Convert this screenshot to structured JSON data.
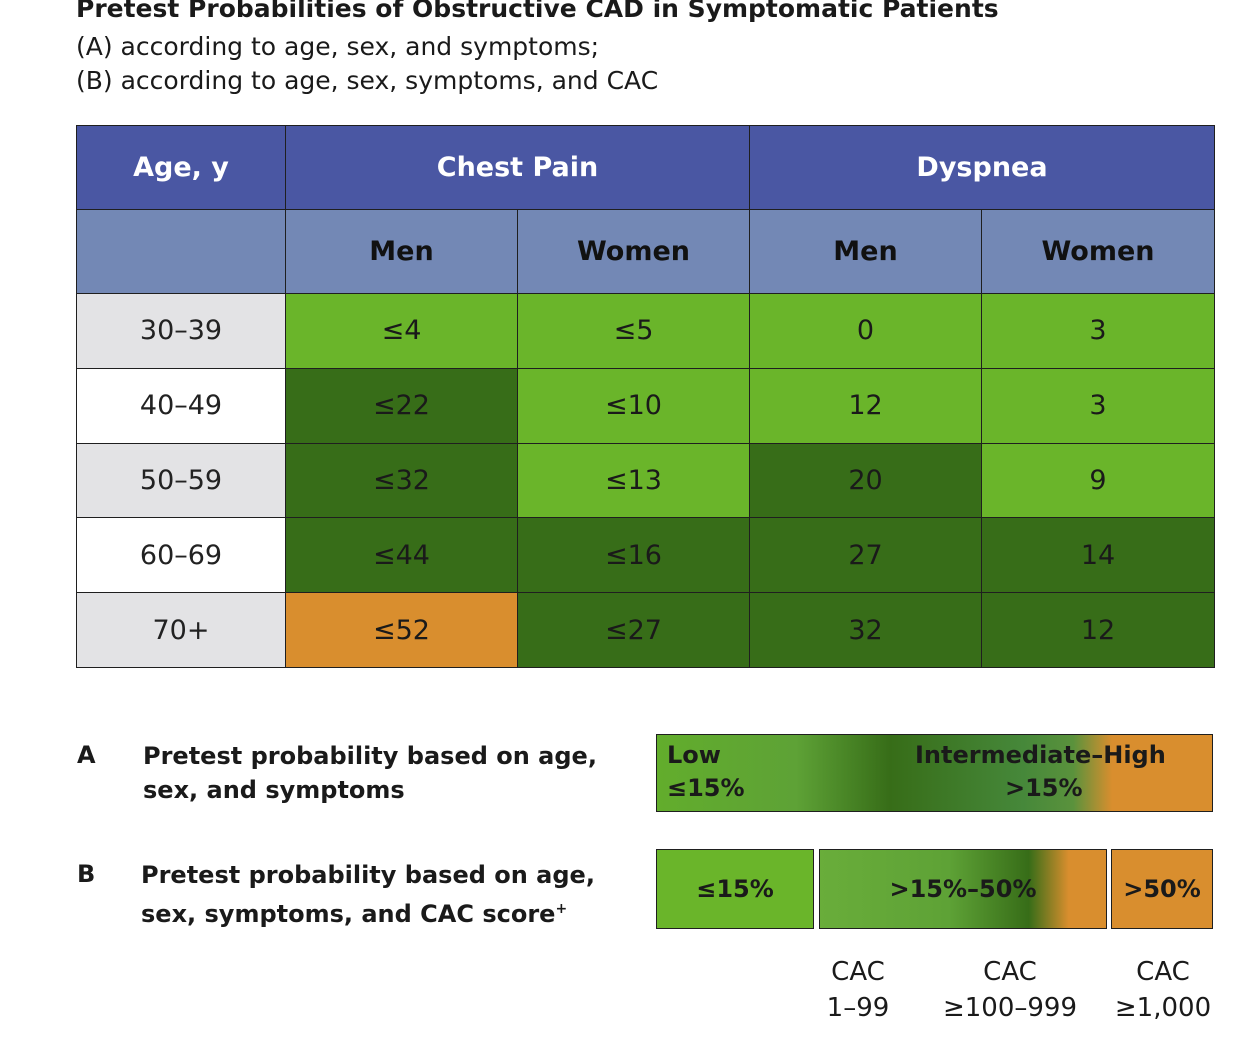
{
  "title": "Pretest Probabilities of Obstructive CAD in Symptomatic Patients",
  "subtitle_lines": [
    "(A) according to age, sex, and symptoms;",
    "(B) according to age, sex, symptoms, and CAC"
  ],
  "chart_data": {
    "type": "table",
    "header_row1": [
      "Age, y",
      "Chest Pain",
      "Dyspnea"
    ],
    "header_row2": [
      "Men",
      "Women",
      "Men",
      "Women"
    ],
    "rows": [
      {
        "age": "30–39",
        "values": [
          "≤4",
          "≤5",
          "0",
          "3"
        ],
        "colors": [
          "light-green",
          "light-green",
          "light-green",
          "light-green"
        ]
      },
      {
        "age": "40–49",
        "values": [
          "≤22",
          "≤10",
          "12",
          "3"
        ],
        "colors": [
          "dark-green",
          "light-green",
          "light-green",
          "light-green"
        ]
      },
      {
        "age": "50–59",
        "values": [
          "≤32",
          "≤13",
          "20",
          "9"
        ],
        "colors": [
          "dark-green",
          "light-green",
          "dark-green",
          "light-green"
        ]
      },
      {
        "age": "60–69",
        "values": [
          "≤44",
          "≤16",
          "27",
          "14"
        ],
        "colors": [
          "dark-green",
          "dark-green",
          "dark-green",
          "dark-green"
        ]
      },
      {
        "age": "70+",
        "values": [
          "≤52",
          "≤27",
          "32",
          "12"
        ],
        "colors": [
          "orange",
          "dark-green",
          "dark-green",
          "dark-green"
        ]
      }
    ]
  },
  "colors": {
    "header_dark": "#4a57a3",
    "header_light": "#7388b5",
    "light_green": "#6ab52a",
    "dark_green": "#376d18",
    "orange": "#d98e2e"
  },
  "legend": {
    "a": {
      "letter": "A",
      "label_lines": [
        "Pretest probability based on age,",
        "sex, and symptoms"
      ],
      "low_label": "Low",
      "low_value": "≤15%",
      "high_label": "Intermediate–High",
      "high_value": ">15%"
    },
    "b": {
      "letter": "B",
      "label_line1": "Pretest probability based on age,",
      "label_line2": "sex, symptoms, and CAC score",
      "label_sup": "+",
      "segments": [
        "≤15%",
        ">15%–50%",
        ">50%"
      ],
      "cac_labels": [
        {
          "line1": "CAC",
          "line2": "1–99"
        },
        {
          "line1": "CAC",
          "line2": "≥100–999"
        },
        {
          "line1": "CAC",
          "line2": "≥1,000"
        }
      ]
    }
  }
}
